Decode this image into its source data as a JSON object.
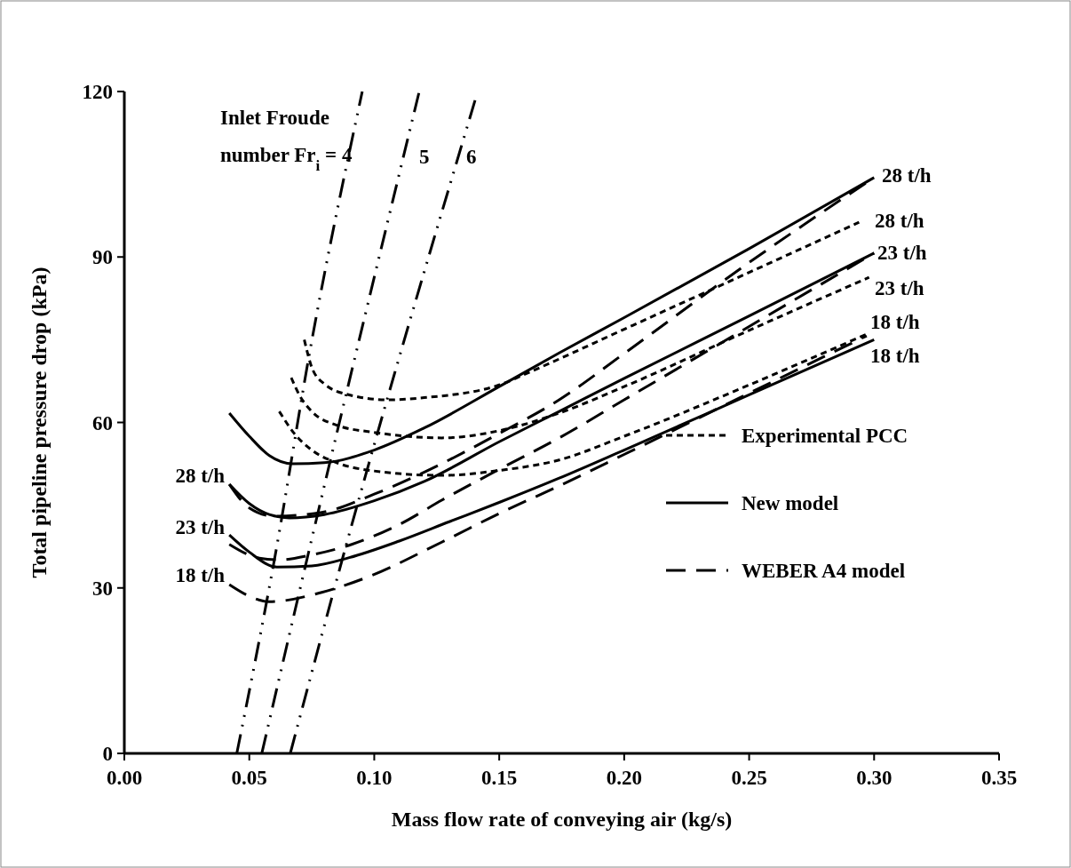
{
  "chart_data": {
    "type": "line",
    "xlabel": "Mass flow rate of conveying air (kg/s)",
    "ylabel": "Total pipeline pressure drop (kPa)",
    "xlim": [
      0,
      0.35
    ],
    "xticks": [
      {
        "value": 0,
        "label": "0.00"
      },
      {
        "value": 0.05,
        "label": "0.05"
      },
      {
        "value": 0.1,
        "label": "0.10"
      },
      {
        "value": 0.15,
        "label": "0.15"
      },
      {
        "value": 0.2,
        "label": "0.20"
      },
      {
        "value": 0.25,
        "label": "0.25"
      },
      {
        "value": 0.3,
        "label": "0.30"
      },
      {
        "value": 0.35,
        "label": "0.35"
      }
    ],
    "ylim": [
      0,
      120
    ],
    "yticks": [
      0,
      30,
      60,
      90,
      120
    ],
    "grid": false,
    "legend": "right",
    "series": [
      {
        "name": "Experimental PCC",
        "color": "#000000",
        "line_style": "dotted",
        "x": [
          0.072,
          0.075,
          0.08,
          0.09,
          0.1055,
          0.12,
          0.15,
          0.163,
          0.2,
          0.25,
          0.294
        ],
        "values": [
          75,
          70,
          67,
          65,
          64.1,
          64.5,
          66.8,
          69.3,
          76.9,
          87.2,
          96.3
        ]
      },
      {
        "color": "#000000",
        "line_style": "dotted",
        "x": [
          0.0668,
          0.07,
          0.075,
          0.085,
          0.1,
          0.127,
          0.15,
          0.174,
          0.2,
          0.25,
          0.298
        ],
        "values": [
          68.1,
          65,
          62,
          59.5,
          58.2,
          57.2,
          58.5,
          61.7,
          66.5,
          76.7,
          86.3
        ]
      },
      {
        "color": "#000000",
        "line_style": "dotted",
        "x": [
          0.062,
          0.068,
          0.075,
          0.085,
          0.1,
          0.127,
          0.15,
          0.174,
          0.2,
          0.25,
          0.297
        ],
        "values": [
          62,
          58,
          55,
          52.7,
          51.2,
          50.4,
          51.3,
          53.2,
          57.5,
          66.8,
          76
        ]
      },
      {
        "name": "New model",
        "color": "#000000",
        "line_style": "solid",
        "x": [
          0.042,
          0.05,
          0.058,
          0.0675,
          0.08,
          0.1,
          0.12,
          0.15,
          0.174,
          0.2,
          0.25,
          0.3
        ],
        "values": [
          61.7,
          57.5,
          54,
          52.5,
          52.7,
          55,
          59,
          66.5,
          72.6,
          79,
          91.5,
          104.4
        ]
      },
      {
        "color": "#000000",
        "line_style": "solid",
        "x": [
          0.042,
          0.05,
          0.058,
          0.066,
          0.08,
          0.1,
          0.12,
          0.15,
          0.174,
          0.2,
          0.25,
          0.3
        ],
        "values": [
          48.8,
          45.3,
          43.3,
          42.7,
          43.3,
          45.8,
          49.3,
          56.5,
          62,
          68,
          79.3,
          90.7
        ]
      },
      {
        "color": "#000000",
        "line_style": "solid",
        "x": [
          0.042,
          0.05,
          0.061,
          0.075,
          0.09,
          0.11,
          0.13,
          0.15,
          0.174,
          0.2,
          0.25,
          0.3
        ],
        "values": [
          39.6,
          36.5,
          33.8,
          34,
          35.5,
          38.5,
          42,
          45.5,
          49.9,
          55,
          65,
          75
        ]
      },
      {
        "name": "WEBER A4 model",
        "color": "#000000",
        "line_style": "dashed",
        "x": [
          0.042,
          0.05,
          0.06,
          0.079,
          0.1,
          0.121,
          0.15,
          0.174,
          0.2,
          0.25,
          0.3
        ],
        "values": [
          48.8,
          44.5,
          43,
          43.7,
          47,
          51.2,
          58,
          64.1,
          72.5,
          89,
          104.4
        ]
      },
      {
        "color": "#000000",
        "line_style": "dashed",
        "x": [
          0.042,
          0.054,
          0.062,
          0.075,
          0.091,
          0.11,
          0.127,
          0.15,
          0.174,
          0.2,
          0.25,
          0.3
        ],
        "values": [
          37.9,
          35.4,
          35.1,
          36,
          37.9,
          41.5,
          45.9,
          51.5,
          57.2,
          64.1,
          77.4,
          90.7
        ]
      },
      {
        "color": "#000000",
        "line_style": "dashed",
        "x": [
          0.042,
          0.051,
          0.058,
          0.079,
          0.097,
          0.127,
          0.15,
          0.174,
          0.2,
          0.25,
          0.297
        ],
        "values": [
          30.6,
          28.3,
          27.5,
          29.2,
          31.9,
          38.3,
          43.5,
          48.5,
          54.2,
          65.3,
          75.7
        ]
      },
      {
        "color": "#000000",
        "line_style": "dashdotdot",
        "x": [
          0.045,
          0.0604,
          0.0746,
          0.0952
        ],
        "values": [
          0,
          36,
          73.8,
          120
        ]
      },
      {
        "color": "#000000",
        "line_style": "dashdotdot",
        "x": [
          0.055,
          0.0735,
          0.118
        ],
        "values": [
          0,
          36,
          120
        ]
      },
      {
        "color": "#000000",
        "line_style": "dashdotdot",
        "x": [
          0.0664,
          0.0877,
          0.1404
        ],
        "values": [
          0,
          36,
          118.5
        ]
      }
    ],
    "annotations": [
      "Inlet Froude number Fr$_{i}$ = 4",
      "5",
      "6",
      "28 t/h",
      "23 t/h",
      "18 t/h",
      "28 t/h",
      "28 t/h",
      "23 t/h",
      "23 t/h",
      "18 t/h",
      "18 t/h"
    ]
  }
}
